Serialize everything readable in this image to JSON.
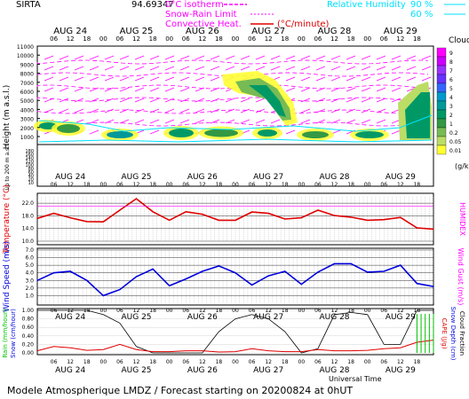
{
  "header": {
    "station": "SIRTA",
    "coords": "94.69347",
    "legend_isotherm": "0°C isotherm",
    "legend_snow_rain": "Snow-Rain Limit",
    "legend_convective": "Convective Heat.",
    "legend_convective_unit": "(°C/minute)",
    "legend_rh": "Relative Humidity",
    "legend_rh_90": "90 %",
    "legend_rh_60": "60 %"
  },
  "footer": {
    "title": "Modele Atmospherique LMDZ / Forecast starting on 20200824 at 0hUT",
    "universal_time": "Universal Time"
  },
  "colors": {
    "magenta": "#ff00ff",
    "cyan": "#00e0ff",
    "red": "#e00000",
    "blue": "#0000dd",
    "green": "#00c000",
    "black": "#000000"
  },
  "chart_data": [
    {
      "type": "heatmap",
      "name": "clouds",
      "ylabel": "Height (m a.s.l.)",
      "ylabel2": "Up to 200 m a.s.l.",
      "colorbar_title": "Clouds",
      "colorbar_unit": "(g/kg)",
      "colorbar_levels": [
        "9",
        "8",
        "7",
        "6",
        "5",
        "4",
        "3",
        "2",
        "1",
        "0.2",
        "0.05",
        "0.01"
      ],
      "colorbar_colors": [
        "#ff00ff",
        "#cc00ff",
        "#9933ff",
        "#6633ff",
        "#3366ff",
        "#0099cc",
        "#00999a",
        "#009966",
        "#339944",
        "#77bb55",
        "#bbdd66",
        "#ffff33"
      ],
      "y_ticks_upper": [
        11000,
        10000,
        9000,
        8000,
        7000,
        6000,
        5000,
        4000,
        3000,
        2000,
        1000
      ],
      "y_ticks_lower": [
        180,
        160,
        140,
        120,
        100,
        80,
        60,
        40,
        20,
        10
      ],
      "days": [
        "AUG 24",
        "AUG 25",
        "AUG 26",
        "AUG 27",
        "AUG 28",
        "AUG 29"
      ],
      "hour_ticks": [
        "06",
        "12",
        "18",
        "00",
        "06",
        "12",
        "18",
        "00",
        "06",
        "12",
        "18",
        "00",
        "06",
        "12",
        "18",
        "00",
        "06",
        "12",
        "18",
        "00",
        "06",
        "12",
        "18"
      ]
    },
    {
      "type": "line",
      "name": "temperature",
      "ylabel": "Temperature (°C)",
      "ylabel2": "HUMIDEX",
      "y_ticks": [
        "22.0",
        "18.0",
        "14.0",
        "10.0"
      ],
      "ylim": [
        10,
        24
      ],
      "x_hours": [
        0,
        6,
        12,
        18,
        24,
        30,
        36,
        42,
        48,
        54,
        60,
        66,
        72,
        78,
        84,
        90,
        96,
        102,
        108,
        114,
        120,
        126,
        132,
        138,
        144
      ],
      "values": [
        17.2,
        18.8,
        17.4,
        16.2,
        16.1,
        19.8,
        23.4,
        19.3,
        16.6,
        19.3,
        18.5,
        16.6,
        16.6,
        19.2,
        18.8,
        17.0,
        17.4,
        19.8,
        18.1,
        17.6,
        16.6,
        16.8,
        17.5,
        14.2,
        13.8
      ]
    },
    {
      "type": "line",
      "name": "wind",
      "ylabel": "Wind Speed (m/s)",
      "ylabel2": "Wind Gust (m/s)",
      "y_ticks": [
        "7.0",
        "6.0",
        "5.0",
        "4.0",
        "3.0",
        "2.0",
        "1.0"
      ],
      "ylim": [
        0,
        7
      ],
      "x_hours": [
        0,
        6,
        12,
        18,
        24,
        30,
        36,
        42,
        48,
        54,
        60,
        66,
        72,
        78,
        84,
        90,
        96,
        102,
        108,
        114,
        120,
        126,
        132,
        138,
        144
      ],
      "values": [
        3.0,
        4.0,
        4.2,
        3.0,
        1.0,
        1.8,
        3.5,
        4.5,
        2.3,
        3.2,
        4.2,
        4.9,
        4.0,
        2.4,
        3.6,
        4.2,
        2.5,
        4.1,
        5.2,
        5.2,
        4.1,
        4.2,
        5.0,
        2.6,
        2.2
      ]
    },
    {
      "type": "line",
      "name": "precipitation",
      "ylabel": "Rain (mm/hour)",
      "ylabel_snow": "Snow (cm/hour)",
      "ylabel2_cape": "CAPE (J/g)",
      "ylabel2_snowdepth": "Snow Depth (cm)",
      "ylabel2_cloud": "Cloud Fraction",
      "y_ticks": [
        "1.00",
        "0.80",
        "0.60",
        "0.40",
        "0.20",
        "0.00"
      ],
      "ylim": [
        0,
        1
      ],
      "x_hours": [
        0,
        6,
        12,
        18,
        24,
        30,
        36,
        42,
        48,
        54,
        60,
        66,
        72,
        78,
        84,
        90,
        96,
        102,
        108,
        114,
        120,
        126,
        132,
        138,
        144
      ],
      "cloud_fraction": [
        1.0,
        1.0,
        1.0,
        1.0,
        0.9,
        0.7,
        0.15,
        0.0,
        0.0,
        0.0,
        0.0,
        0.5,
        0.8,
        0.9,
        0.8,
        0.5,
        0.0,
        0.1,
        0.9,
        0.95,
        0.9,
        0.2,
        0.2,
        1.0,
        1.0
      ],
      "cape": [
        0.05,
        0.15,
        0.12,
        0.06,
        0.08,
        0.2,
        0.08,
        0.03,
        0.03,
        0.05,
        0.05,
        0.02,
        0.03,
        0.1,
        0.05,
        0.03,
        0.03,
        0.08,
        0.05,
        0.05,
        0.06,
        0.1,
        0.12,
        0.25,
        0.3
      ],
      "rain_bar_hours": [
        138,
        139.5,
        141,
        142.5,
        144
      ]
    }
  ]
}
